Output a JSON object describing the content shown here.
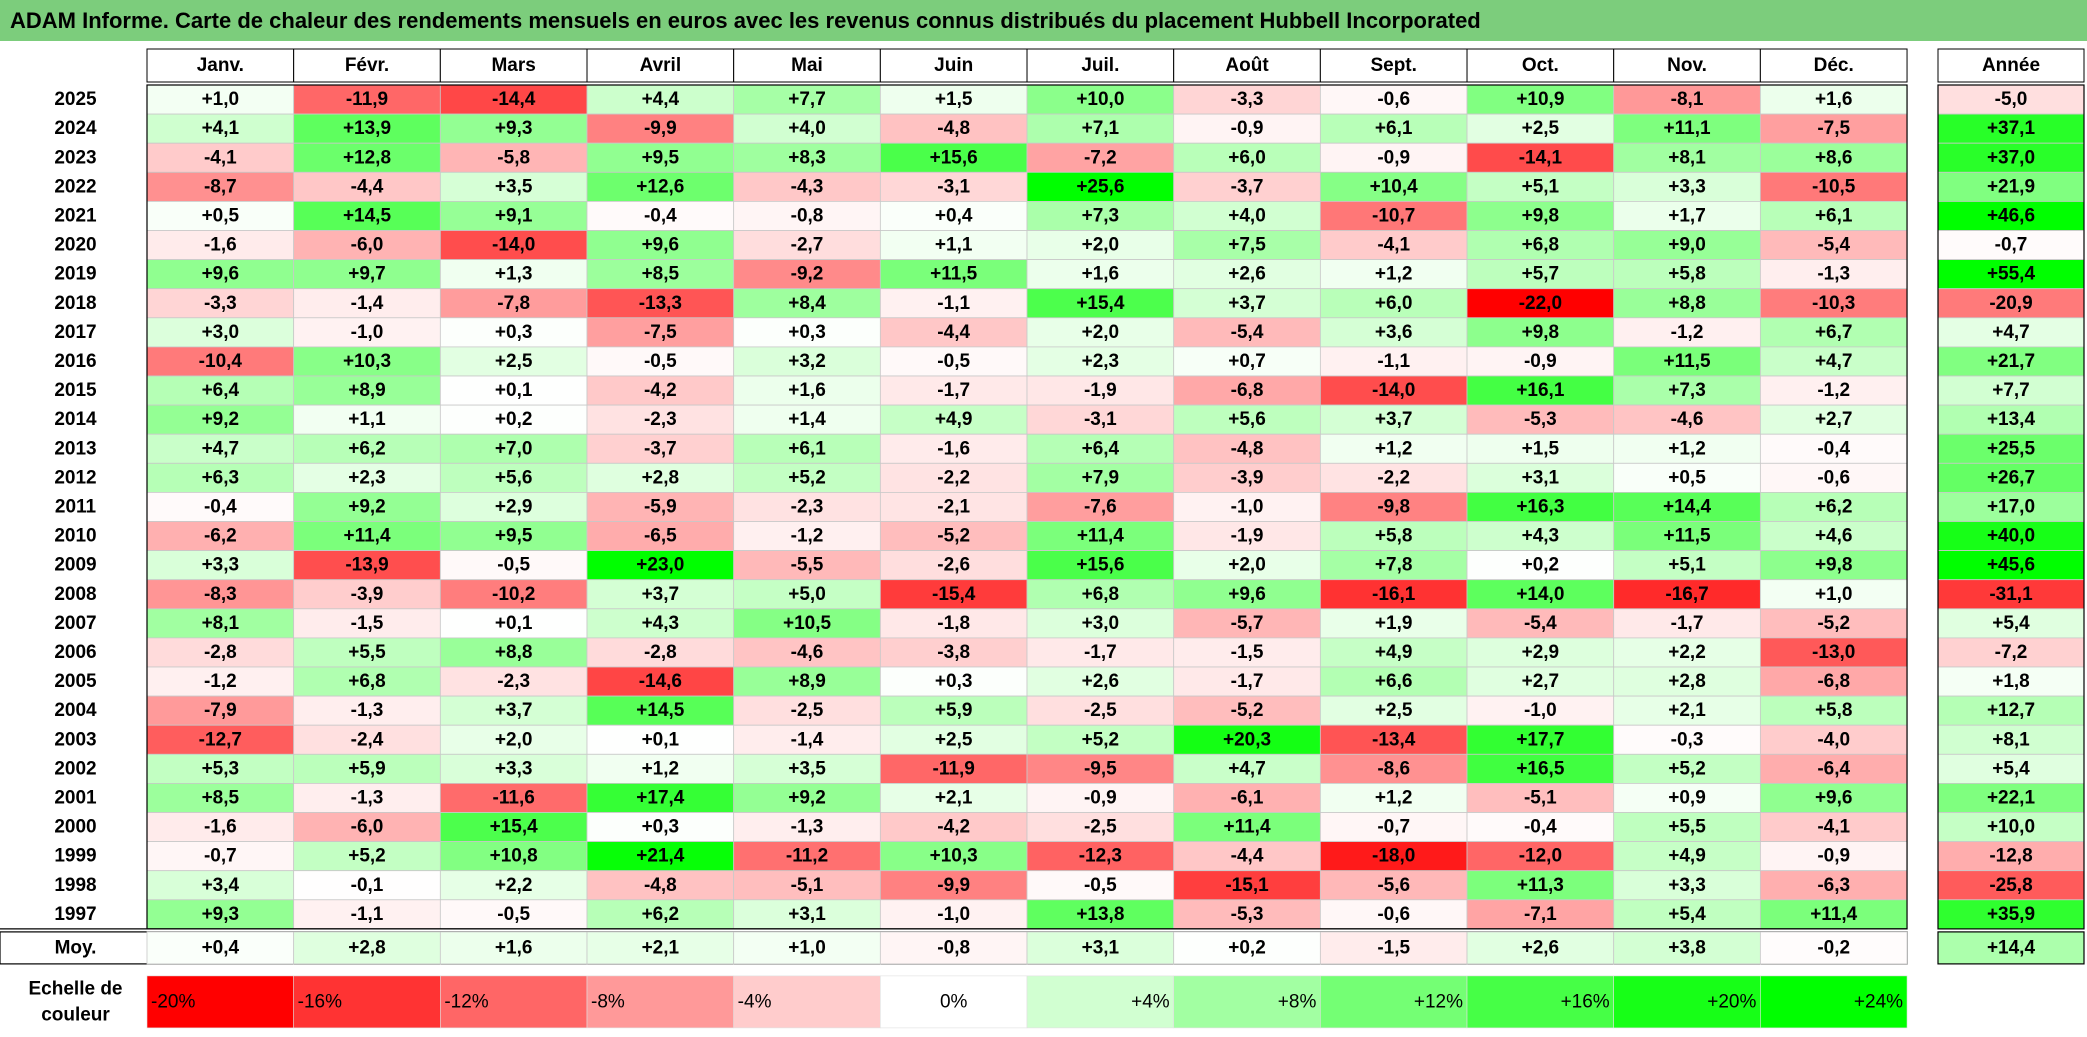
{
  "title": "ADAM Informe. Carte de chaleur des rendements mensuels en euros avec les revenus connus distribués du placement Hubbell Incorporated",
  "chart_data": {
    "type": "heatmap",
    "title": "ADAM Informe. Carte de chaleur des rendements mensuels en euros avec les revenus connus distribués du placement Hubbell Incorporated",
    "months": [
      "Janv.",
      "Févr.",
      "Mars",
      "Avril",
      "Mai",
      "Juin",
      "Juil.",
      "Août",
      "Sept.",
      "Oct.",
      "Nov.",
      "Déc."
    ],
    "year_header": "Année",
    "avg_label": "Moy.",
    "scale_label": "Echelle de couleur",
    "rows": [
      {
        "year": "2025",
        "values": [
          1.0,
          -11.9,
          -14.4,
          4.4,
          7.7,
          1.5,
          10.0,
          -3.3,
          -0.6,
          10.9,
          -8.1,
          1.6
        ],
        "annual": -5.0
      },
      {
        "year": "2024",
        "values": [
          4.1,
          13.9,
          9.3,
          -9.9,
          4.0,
          -4.8,
          7.1,
          -0.9,
          6.1,
          2.5,
          11.1,
          -7.5
        ],
        "annual": 37.1
      },
      {
        "year": "2023",
        "values": [
          -4.1,
          12.8,
          -5.8,
          9.5,
          8.3,
          15.6,
          -7.2,
          6.0,
          -0.9,
          -14.1,
          8.1,
          8.6
        ],
        "annual": 37.0
      },
      {
        "year": "2022",
        "values": [
          -8.7,
          -4.4,
          3.5,
          12.6,
          -4.3,
          -3.1,
          25.6,
          -3.7,
          10.4,
          5.1,
          3.3,
          -10.5
        ],
        "annual": 21.9
      },
      {
        "year": "2021",
        "values": [
          0.5,
          14.5,
          9.1,
          -0.4,
          -0.8,
          0.4,
          7.3,
          4.0,
          -10.7,
          9.8,
          1.7,
          6.1
        ],
        "annual": 46.6
      },
      {
        "year": "2020",
        "values": [
          -1.6,
          -6.0,
          -14.0,
          9.6,
          -2.7,
          1.1,
          2.0,
          7.5,
          -4.1,
          6.8,
          9.0,
          -5.4
        ],
        "annual": -0.7
      },
      {
        "year": "2019",
        "values": [
          9.6,
          9.7,
          1.3,
          8.5,
          -9.2,
          11.5,
          1.6,
          2.6,
          1.2,
          5.7,
          5.8,
          -1.3
        ],
        "annual": 55.4
      },
      {
        "year": "2018",
        "values": [
          -3.3,
          -1.4,
          -7.8,
          -13.3,
          8.4,
          -1.1,
          15.4,
          3.7,
          6.0,
          -22.0,
          8.8,
          -10.3
        ],
        "annual": -20.9
      },
      {
        "year": "2017",
        "values": [
          3.0,
          -1.0,
          0.3,
          -7.5,
          0.3,
          -4.4,
          2.0,
          -5.4,
          3.6,
          9.8,
          -1.2,
          6.7
        ],
        "annual": 4.7
      },
      {
        "year": "2016",
        "values": [
          -10.4,
          10.3,
          2.5,
          -0.5,
          3.2,
          -0.5,
          2.3,
          0.7,
          -1.1,
          -0.9,
          11.5,
          4.7
        ],
        "annual": 21.7
      },
      {
        "year": "2015",
        "values": [
          6.4,
          8.9,
          0.1,
          -4.2,
          1.6,
          -1.7,
          -1.9,
          -6.8,
          -14.0,
          16.1,
          7.3,
          -1.2
        ],
        "annual": 7.7
      },
      {
        "year": "2014",
        "values": [
          9.2,
          1.1,
          0.2,
          -2.3,
          1.4,
          4.9,
          -3.1,
          5.6,
          3.7,
          -5.3,
          -4.6,
          2.7
        ],
        "annual": 13.4
      },
      {
        "year": "2013",
        "values": [
          4.7,
          6.2,
          7.0,
          -3.7,
          6.1,
          -1.6,
          6.4,
          -4.8,
          1.2,
          1.5,
          1.2,
          -0.4
        ],
        "annual": 25.5
      },
      {
        "year": "2012",
        "values": [
          6.3,
          2.3,
          5.6,
          2.8,
          5.2,
          -2.2,
          7.9,
          -3.9,
          -2.2,
          3.1,
          0.5,
          -0.6
        ],
        "annual": 26.7
      },
      {
        "year": "2011",
        "values": [
          -0.4,
          9.2,
          2.9,
          -5.9,
          -2.3,
          -2.1,
          -7.6,
          -1.0,
          -9.8,
          16.3,
          14.4,
          6.2
        ],
        "annual": 17.0
      },
      {
        "year": "2010",
        "values": [
          -6.2,
          11.4,
          9.5,
          -6.5,
          -1.2,
          -5.2,
          11.4,
          -1.9,
          5.8,
          4.3,
          11.5,
          4.6
        ],
        "annual": 40.0
      },
      {
        "year": "2009",
        "values": [
          3.3,
          -13.9,
          -0.5,
          23.0,
          -5.5,
          -2.6,
          15.6,
          2.0,
          7.8,
          0.2,
          5.1,
          9.8
        ],
        "annual": 45.6
      },
      {
        "year": "2008",
        "values": [
          -8.3,
          -3.9,
          -10.2,
          3.7,
          5.0,
          -15.4,
          6.8,
          9.6,
          -16.1,
          14.0,
          -16.7,
          1.0
        ],
        "annual": -31.1
      },
      {
        "year": "2007",
        "values": [
          8.1,
          -1.5,
          0.1,
          4.3,
          10.5,
          -1.8,
          3.0,
          -5.7,
          1.9,
          -5.4,
          -1.7,
          -5.2
        ],
        "annual": 5.4
      },
      {
        "year": "2006",
        "values": [
          -2.8,
          5.5,
          8.8,
          -2.8,
          -4.6,
          -3.8,
          -1.7,
          -1.5,
          4.9,
          2.9,
          2.2,
          -13.0
        ],
        "annual": -7.2
      },
      {
        "year": "2005",
        "values": [
          -1.2,
          6.8,
          -2.3,
          -14.6,
          8.9,
          0.3,
          2.6,
          -1.7,
          6.6,
          2.7,
          2.8,
          -6.8
        ],
        "annual": 1.8
      },
      {
        "year": "2004",
        "values": [
          -7.9,
          -1.3,
          3.7,
          14.5,
          -2.5,
          5.9,
          -2.5,
          -5.2,
          2.5,
          -1.0,
          2.1,
          5.8
        ],
        "annual": 12.7
      },
      {
        "year": "2003",
        "values": [
          -12.7,
          -2.4,
          2.0,
          0.1,
          -1.4,
          2.5,
          5.2,
          20.3,
          -13.4,
          17.7,
          -0.3,
          -4.0
        ],
        "annual": 8.1
      },
      {
        "year": "2002",
        "values": [
          5.3,
          5.9,
          3.3,
          1.2,
          3.5,
          -11.9,
          -9.5,
          4.7,
          -8.6,
          16.5,
          5.2,
          -6.4
        ],
        "annual": 5.4
      },
      {
        "year": "2001",
        "values": [
          8.5,
          -1.3,
          -11.6,
          17.4,
          9.2,
          2.1,
          -0.9,
          -6.1,
          1.2,
          -5.1,
          0.9,
          9.6
        ],
        "annual": 22.1
      },
      {
        "year": "2000",
        "values": [
          -1.6,
          -6.0,
          15.4,
          0.3,
          -1.3,
          -4.2,
          -2.5,
          11.4,
          -0.7,
          -0.4,
          5.5,
          -4.1
        ],
        "annual": 10.0
      },
      {
        "year": "1999",
        "values": [
          -0.7,
          5.2,
          10.8,
          21.4,
          -11.2,
          10.3,
          -12.3,
          -4.4,
          -18.0,
          -12.0,
          4.9,
          -0.9
        ],
        "annual": -12.8
      },
      {
        "year": "1998",
        "values": [
          3.4,
          -0.1,
          2.2,
          -4.8,
          -5.1,
          -9.9,
          -0.5,
          -15.1,
          -5.6,
          11.3,
          3.3,
          -6.3
        ],
        "annual": -25.8
      },
      {
        "year": "1997",
        "values": [
          9.3,
          -1.1,
          -0.5,
          6.2,
          3.1,
          -1.0,
          13.8,
          -5.3,
          -0.6,
          -7.1,
          5.4,
          11.4
        ],
        "annual": 35.9
      }
    ],
    "averages": {
      "values": [
        0.4,
        2.8,
        1.6,
        2.1,
        1.0,
        -0.8,
        3.1,
        0.2,
        -1.5,
        2.6,
        3.8,
        -0.2
      ],
      "annual": 14.4
    },
    "scale": [
      {
        "label": "-20%",
        "value": -20
      },
      {
        "label": "-16%",
        "value": -16
      },
      {
        "label": "-12%",
        "value": -12
      },
      {
        "label": "-8%",
        "value": -8
      },
      {
        "label": "-4%",
        "value": -4
      },
      {
        "label": "0%",
        "value": 0
      },
      {
        "label": "+4%",
        "value": 4
      },
      {
        "label": "+8%",
        "value": 8
      },
      {
        "label": "+12%",
        "value": 12
      },
      {
        "label": "+16%",
        "value": 16
      },
      {
        "label": "+20%",
        "value": 20
      },
      {
        "label": "+24%",
        "value": 24
      }
    ],
    "colors": {
      "negative": "#ff0000",
      "neutral": "#ffffff",
      "positive": "#00ff00",
      "title_bar": "#7ccd7c"
    }
  }
}
